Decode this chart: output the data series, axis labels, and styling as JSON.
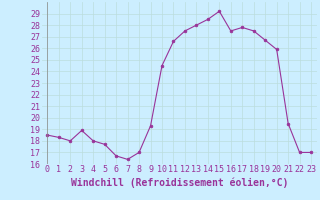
{
  "x": [
    0,
    1,
    2,
    3,
    4,
    5,
    6,
    7,
    8,
    9,
    10,
    11,
    12,
    13,
    14,
    15,
    16,
    17,
    18,
    19,
    20,
    21,
    22,
    23
  ],
  "y": [
    18.5,
    18.3,
    18.0,
    18.9,
    18.0,
    17.7,
    16.7,
    16.4,
    17.0,
    19.3,
    24.5,
    26.6,
    27.5,
    28.0,
    28.5,
    29.2,
    27.5,
    27.8,
    27.5,
    26.7,
    25.9,
    19.5,
    17.0,
    17.0
  ],
  "line_color": "#993399",
  "marker": "o",
  "marker_size": 2,
  "bg_color": "#cceeff",
  "grid_color": "#bbdddd",
  "xlabel": "Windchill (Refroidissement éolien,°C)",
  "xlabel_fontsize": 7,
  "tick_fontsize": 6,
  "ylim": [
    16,
    30
  ],
  "xlim": [
    -0.5,
    23.5
  ],
  "yticks": [
    16,
    17,
    18,
    19,
    20,
    21,
    22,
    23,
    24,
    25,
    26,
    27,
    28,
    29
  ],
  "xticks": [
    0,
    1,
    2,
    3,
    4,
    5,
    6,
    7,
    8,
    9,
    10,
    11,
    12,
    13,
    14,
    15,
    16,
    17,
    18,
    19,
    20,
    21,
    22,
    23
  ]
}
